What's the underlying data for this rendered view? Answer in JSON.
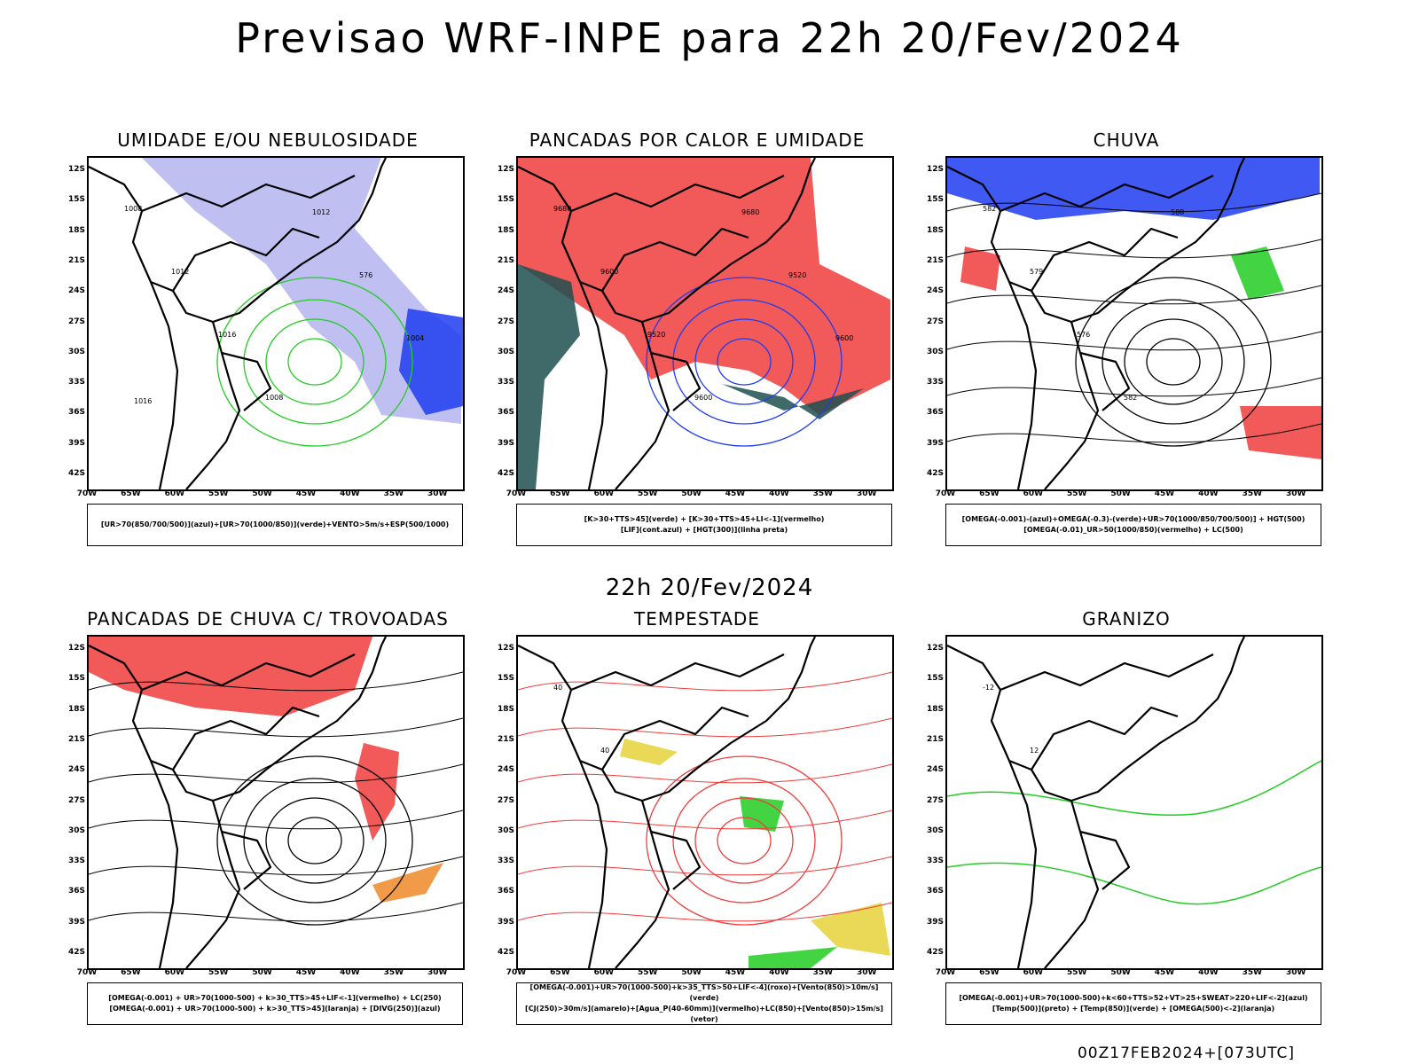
{
  "header": {
    "title": "Previsao WRF-INPE  para 22h 20/Fev/2024",
    "mid_title": "22h 20/Fev/2024",
    "footer": "00Z17FEB2024+[073UTC]"
  },
  "axes": {
    "lat_labels": [
      "12S",
      "15S",
      "18S",
      "21S",
      "24S",
      "27S",
      "30S",
      "33S",
      "36S",
      "39S",
      "42S"
    ],
    "lon_labels": [
      "70W",
      "65W",
      "60W",
      "55W",
      "50W",
      "45W",
      "40W",
      "35W",
      "30W"
    ]
  },
  "colors": {
    "red": "#f03c3c",
    "green": "#22cc22",
    "blue": "#1e3cf0",
    "lightblue": "#b4b4f0",
    "darkteal": "#1f4f4f",
    "orange": "#ef8a28",
    "yellow": "#e6d23a"
  },
  "panels": [
    {
      "title": "UMIDADE E/OU NEBULOSIDADE",
      "legend": [
        "[UR>70(850/700/500)](azul)+[UR>70(1000/850)](verde)+VENTO>5m/s+ESP(500/1000)"
      ],
      "contour_labels": [
        "1008",
        "1012",
        "1016",
        "1008",
        "1012",
        "576",
        "1004",
        "1016"
      ]
    },
    {
      "title": "PANCADAS POR CALOR E UMIDADE",
      "legend": [
        "[K>30+TTS>45](verde) + [K>30+TTS>45+LI<-1](vermelho)",
        "[LIF](cont.azul) + [HGT(300)](linha preta)"
      ],
      "contour_labels": [
        "9680",
        "9600",
        "9520",
        "9600",
        "9680",
        "9520",
        "9600"
      ]
    },
    {
      "title": "CHUVA",
      "legend": [
        "[OMEGA(-0.001)-(azul)+OMEGA(-0.3)-(verde)+UR>70(1000/850/700/500)] + HGT(500)",
        "[OMEGA(-0.01)_UR>50(1000/850)(vermelho) + LC(500)"
      ],
      "contour_labels": [
        "582",
        "579",
        "576",
        "582",
        "588"
      ]
    },
    {
      "title": "PANCADAS DE CHUVA C/ TROVOADAS",
      "legend": [
        "[OMEGA(-0.001) + UR>70(1000-500) + k>30_TTS>45+LIF<-1](vermelho) + LC(250)",
        "[OMEGA(-0.001) + UR>70(1000-500) + k>30_TTS>45](laranja) + [DIVG(250)](azul)"
      ],
      "contour_labels": []
    },
    {
      "title": "TEMPESTADE",
      "legend": [
        "[OMEGA(-0.001)+UR>70(1000-500)+k>35_TTS>50+LIF<-4](roxo)+[Vento(850)>10m/s](verde)",
        "[CJ(250)>30m/s](amarelo)+[Agua_P(40-60mm)](vermelho)+LC(850)+[Vento(850)>15m/s](vetor)"
      ],
      "contour_labels": [
        "40",
        "40"
      ]
    },
    {
      "title": "GRANIZO",
      "legend": [
        "[OMEGA(-0.001)+UR>70(1000-500)+k<60+TTS>52+VT>25+SWEAT>220+LIF<-2](azul)",
        "[Temp(500)](preto) + [Temp(850)](verde) + [OMEGA(500)<-2](laranja)"
      ],
      "contour_labels": [
        "-12",
        "12"
      ]
    }
  ]
}
